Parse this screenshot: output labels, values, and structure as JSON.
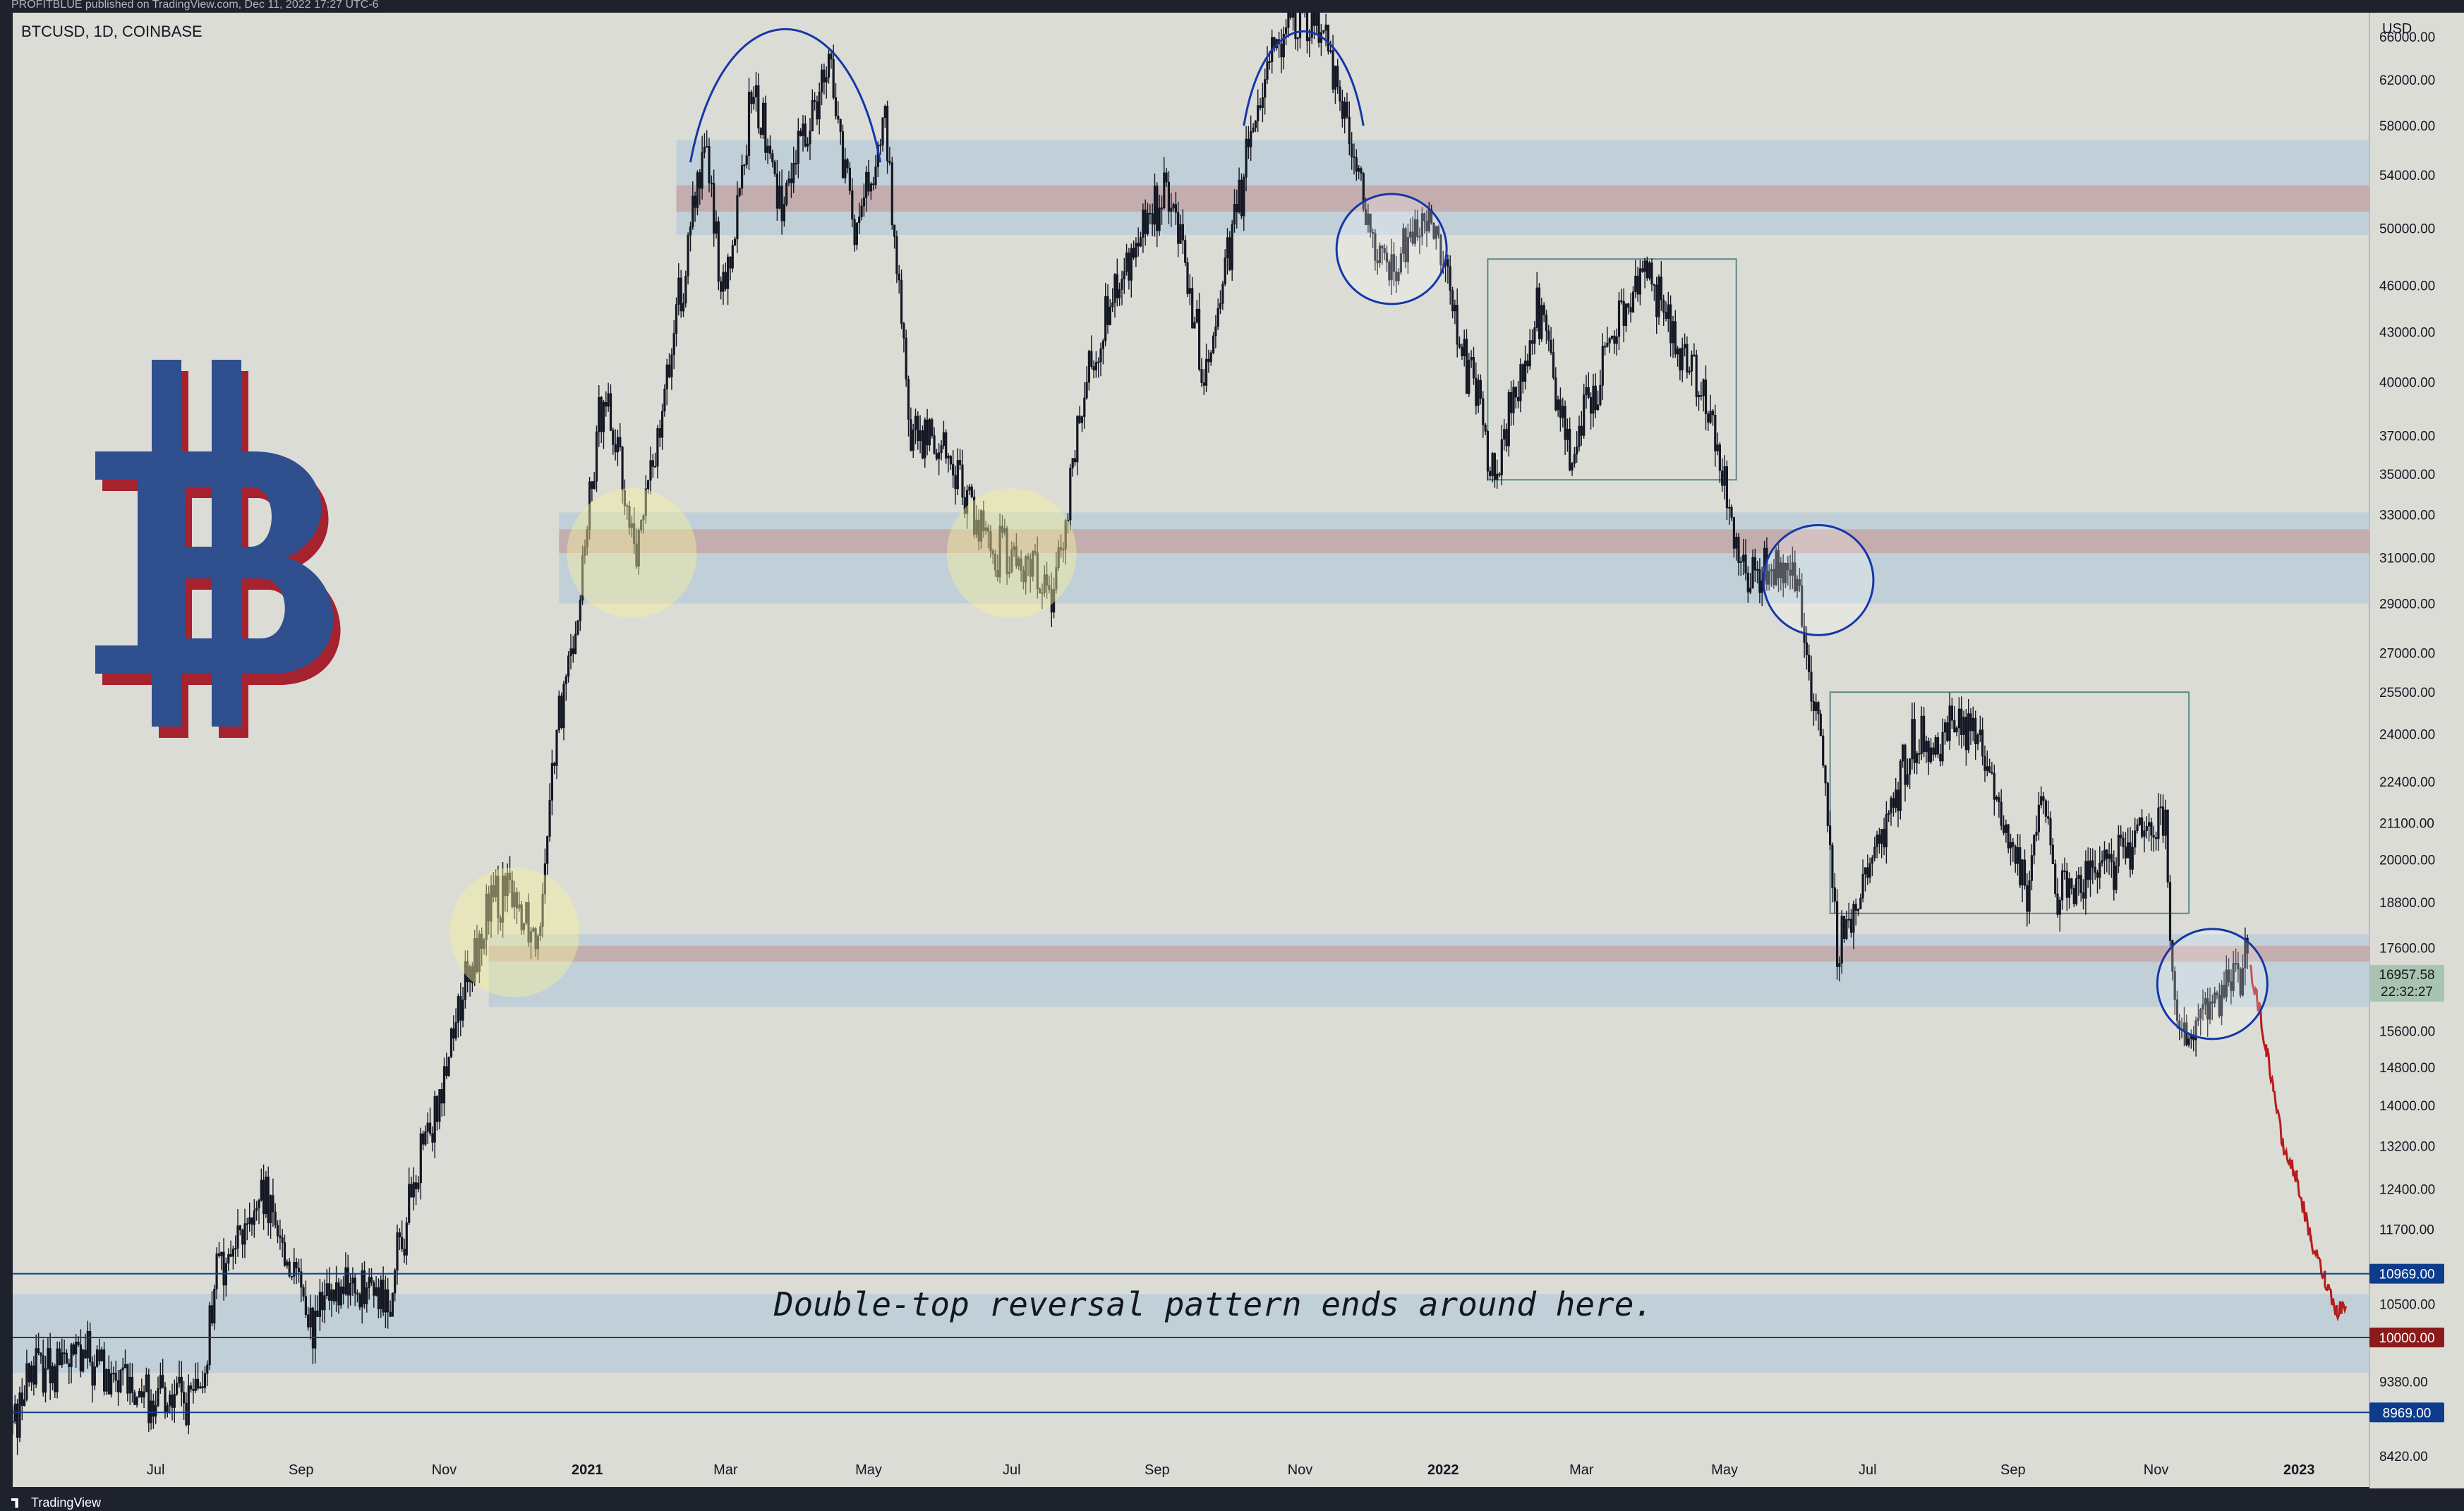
{
  "header": {
    "published_text": "PROFITBLUE published on TradingView.com, Dec 11, 2022 17:27 UTC-6",
    "symbol": "BTCUSD, 1D, COINBASE",
    "currency": "USD"
  },
  "footer": {
    "brand": "TradingView"
  },
  "annotation": "Double-top reversal pattern ends around here.",
  "chart_data": {
    "type": "line",
    "symbol": "BTCUSD",
    "interval": "1D",
    "exchange": "COINBASE",
    "y_scale": "log",
    "ylim": [
      8420,
      67500
    ],
    "y_ticks": [
      66000,
      62000,
      58000,
      54000,
      50000,
      46000,
      43000,
      40000,
      37000,
      35000,
      33000,
      31000,
      29000,
      27000,
      25500,
      24000,
      22400,
      21100,
      20000,
      18800,
      17600,
      15600,
      14800,
      14000,
      13200,
      12400,
      11700,
      10500,
      9380,
      8420
    ],
    "y_tick_labels": [
      "66000.00",
      "62000.00",
      "58000.00",
      "54000.00",
      "50000.00",
      "46000.00",
      "43000.00",
      "40000.00",
      "37000.00",
      "35000.00",
      "33000.00",
      "31000.00",
      "29000.00",
      "27000.00",
      "25500.00",
      "24000.00",
      "22400.00",
      "21100.00",
      "20000.00",
      "18800.00",
      "17600.00",
      "15600.00",
      "14800.00",
      "14000.00",
      "13200.00",
      "12400.00",
      "11700.00",
      "10500.00",
      "9380.00",
      "8420.00"
    ],
    "x_tick_labels": [
      "Jul",
      "Sep",
      "Nov",
      "2021",
      "Mar",
      "May",
      "Jul",
      "Sep",
      "Nov",
      "2022",
      "Mar",
      "May",
      "Jul",
      "Sep",
      "Nov",
      "2023"
    ],
    "x_tick_dates": [
      "2020-07-01",
      "2020-09-01",
      "2020-11-01",
      "2021-01-01",
      "2021-03-01",
      "2021-05-01",
      "2021-07-01",
      "2021-09-01",
      "2021-11-01",
      "2022-01-01",
      "2022-03-01",
      "2022-05-01",
      "2022-07-01",
      "2022-09-01",
      "2022-11-01",
      "2023-01-01"
    ],
    "x_range": [
      "2020-05-01",
      "2023-01-31"
    ],
    "price_points": [
      [
        "2020-05-01",
        8800
      ],
      [
        "2020-05-10",
        9600
      ],
      [
        "2020-06-01",
        9700
      ],
      [
        "2020-06-15",
        9350
      ],
      [
        "2020-07-01",
        9200
      ],
      [
        "2020-07-20",
        9150
      ],
      [
        "2020-07-27",
        11000
      ],
      [
        "2020-08-17",
        12200
      ],
      [
        "2020-09-05",
        10200
      ],
      [
        "2020-09-20",
        10800
      ],
      [
        "2020-10-08",
        10600
      ],
      [
        "2020-10-22",
        12900
      ],
      [
        "2020-11-05",
        15600
      ],
      [
        "2020-11-20",
        18600
      ],
      [
        "2020-12-01",
        19000
      ],
      [
        "2020-12-11",
        18000
      ],
      [
        "2020-12-17",
        23000
      ],
      [
        "2020-12-27",
        28000
      ],
      [
        "2021-01-08",
        40000
      ],
      [
        "2021-01-22",
        31000
      ],
      [
        "2021-02-08",
        44000
      ],
      [
        "2021-02-21",
        57000
      ],
      [
        "2021-02-28",
        45000
      ],
      [
        "2021-03-13",
        61000
      ],
      [
        "2021-03-25",
        52000
      ],
      [
        "2021-04-14",
        64000
      ],
      [
        "2021-04-25",
        49000
      ],
      [
        "2021-05-08",
        58000
      ],
      [
        "2021-05-19",
        37000
      ],
      [
        "2021-06-01",
        36500
      ],
      [
        "2021-06-22",
        31500
      ],
      [
        "2021-07-20",
        29800
      ],
      [
        "2021-08-01",
        40000
      ],
      [
        "2021-08-22",
        49000
      ],
      [
        "2021-09-06",
        52500
      ],
      [
        "2021-09-21",
        40500
      ],
      [
        "2021-10-01",
        48000
      ],
      [
        "2021-10-20",
        66000
      ],
      [
        "2021-11-10",
        68000
      ],
      [
        "2021-11-26",
        54000
      ],
      [
        "2021-12-04",
        47000
      ],
      [
        "2021-12-15",
        48000
      ],
      [
        "2021-12-27",
        51000
      ],
      [
        "2022-01-10",
        41500
      ],
      [
        "2022-01-24",
        35000
      ],
      [
        "2022-02-10",
        45000
      ],
      [
        "2022-02-24",
        36500
      ],
      [
        "2022-03-28",
        47500
      ],
      [
        "2022-04-26",
        38000
      ],
      [
        "2022-05-09",
        30000
      ],
      [
        "2022-06-01",
        30500
      ],
      [
        "2022-06-13",
        22500
      ],
      [
        "2022-06-18",
        17600
      ],
      [
        "2022-07-01",
        19500
      ],
      [
        "2022-07-20",
        23500
      ],
      [
        "2022-08-14",
        24500
      ],
      [
        "2022-09-07",
        18800
      ],
      [
        "2022-09-13",
        22400
      ],
      [
        "2022-09-20",
        18800
      ],
      [
        "2022-10-01",
        19300
      ],
      [
        "2022-11-05",
        21300
      ],
      [
        "2022-11-09",
        15700
      ],
      [
        "2022-11-21",
        15800
      ],
      [
        "2022-12-05",
        17200
      ],
      [
        "2022-12-11",
        17100
      ]
    ],
    "projection_points": [
      [
        "2022-12-11",
        17100
      ],
      [
        "2022-12-14",
        16400
      ],
      [
        "2022-12-18",
        15200
      ],
      [
        "2022-12-21",
        14400
      ],
      [
        "2022-12-25",
        13200
      ],
      [
        "2022-12-31",
        12600
      ],
      [
        "2023-01-06",
        11500
      ],
      [
        "2023-01-12",
        10900
      ],
      [
        "2023-01-17",
        10400
      ],
      [
        "2023-01-21",
        10500
      ]
    ],
    "last_price": {
      "value": "16957.58",
      "countdown": "22:32:27"
    },
    "price_markers": [
      {
        "value": 10969,
        "label": "10969.00",
        "color": "#0d3c8d"
      },
      {
        "value": 10000,
        "label": "10000.00",
        "color": "#8b1a1a"
      },
      {
        "value": 8969,
        "label": "8969.00",
        "color": "#0d3c8d"
      }
    ],
    "zones": [
      {
        "date_start": "2021-02-08",
        "price_low": 49500,
        "price_high": 56800,
        "band_low": 51200,
        "band_high": 53200
      },
      {
        "date_start": "2020-12-20",
        "price_low": 29000,
        "price_high": 33100,
        "band_low": 31200,
        "band_high": 32300
      },
      {
        "date_start": "2020-11-20",
        "price_low": 16150,
        "price_high": 17950,
        "band_low": 17250,
        "band_high": 17650
      },
      {
        "date_start": "2020-05-01",
        "price_low": 9500,
        "price_high": 10650,
        "band_low": null,
        "band_high": null
      }
    ],
    "range_boxes": [
      {
        "date_start": "2022-01-20",
        "date_end": "2022-05-06",
        "price_low": 34700,
        "price_high": 47800
      },
      {
        "date_start": "2022-06-15",
        "date_end": "2022-11-15",
        "price_low": 18500,
        "price_high": 25500
      }
    ],
    "yellow_circles": [
      {
        "date": "2020-12-01",
        "price": 18000
      },
      {
        "date": "2021-01-20",
        "price": 31200
      },
      {
        "date": "2021-07-01",
        "price": 31200
      }
    ],
    "blue_circles": [
      {
        "date": "2021-12-10",
        "price": 48500
      },
      {
        "date": "2022-06-10",
        "price": 30000
      },
      {
        "date": "2022-11-25",
        "price": 16700
      }
    ],
    "arcs": [
      {
        "date_start": "2021-02-14",
        "date_end": "2021-05-06",
        "price_base": 55000,
        "price_top": 69000
      },
      {
        "date_start": "2021-10-08",
        "date_end": "2021-11-28",
        "price_base": 58000,
        "price_top": 67500
      }
    ],
    "colors": {
      "background": "#dcdcd6",
      "candles": "#131722",
      "projection": "#b71c1c",
      "zone_fill": "#b8ccd8",
      "zone_band": "#c4a8aa",
      "circle_blue": "#1537a8",
      "circle_yellow": "#f3ef9e",
      "logo_blue": "#2f4f8f",
      "logo_red": "#a5222e"
    },
    "logo_icon": "bitcoin-logo-icon"
  }
}
